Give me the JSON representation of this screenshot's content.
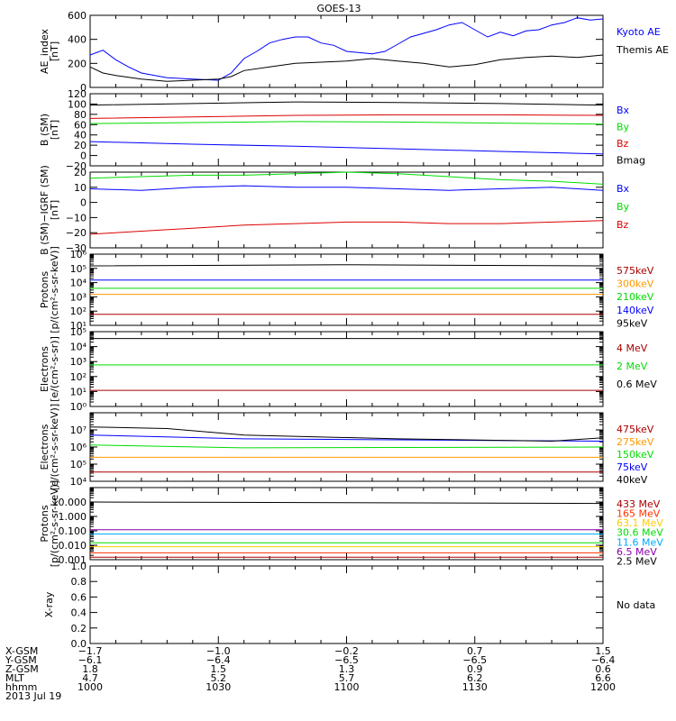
{
  "title": "GOES-13",
  "chart_data": [
    {
      "type": "line",
      "id": "ae",
      "ylabel": [
        "AE_index",
        "[nT]"
      ],
      "ylim": [
        0,
        600
      ],
      "yticks": [
        0,
        200,
        400,
        600
      ],
      "ytick_labels": [
        "0",
        "200",
        "400",
        "600"
      ],
      "series": [
        {
          "name": "Kyoto AE",
          "color": "#0000ff",
          "x": [
            0,
            5,
            10,
            15,
            20,
            30,
            40,
            50,
            55,
            60,
            65,
            70,
            75,
            80,
            85,
            90,
            95,
            100,
            110,
            115,
            120,
            125,
            130,
            135,
            140,
            145,
            150,
            155,
            160,
            165,
            170,
            175,
            180,
            185,
            190,
            195,
            200
          ],
          "y": [
            270,
            310,
            230,
            170,
            120,
            80,
            70,
            60,
            120,
            240,
            300,
            370,
            400,
            420,
            420,
            370,
            350,
            300,
            280,
            300,
            360,
            420,
            450,
            480,
            520,
            540,
            480,
            420,
            460,
            430,
            470,
            480,
            520,
            540,
            580,
            560,
            570
          ]
        },
        {
          "name": "Themis AE",
          "color": "#000000",
          "x": [
            0,
            5,
            10,
            20,
            30,
            40,
            50,
            55,
            60,
            70,
            80,
            90,
            100,
            110,
            120,
            130,
            140,
            150,
            160,
            170,
            180,
            190,
            200
          ],
          "y": [
            170,
            120,
            100,
            70,
            50,
            60,
            70,
            90,
            140,
            170,
            200,
            210,
            220,
            240,
            220,
            200,
            170,
            190,
            230,
            250,
            260,
            250,
            270
          ]
        }
      ]
    },
    {
      "type": "line",
      "id": "bsm",
      "ylabel": [
        "B (SM)",
        "[nT]"
      ],
      "ylim": [
        -20,
        120
      ],
      "yticks": [
        -20,
        0,
        20,
        40,
        60,
        80,
        100,
        120
      ],
      "ytick_labels": [
        "−20",
        "0",
        "20",
        "40",
        "60",
        "80",
        "100",
        "120"
      ],
      "series": [
        {
          "name": "Bx",
          "color": "#0000ff",
          "x": [
            0,
            40,
            80,
            120,
            160,
            200
          ],
          "y": [
            27,
            22,
            18,
            13,
            8,
            3
          ]
        },
        {
          "name": "By",
          "color": "#00dd00",
          "x": [
            0,
            40,
            80,
            120,
            160,
            200
          ],
          "y": [
            62,
            64,
            66,
            65,
            63,
            61
          ]
        },
        {
          "name": "Bz",
          "color": "#dd0000",
          "x": [
            0,
            40,
            80,
            120,
            160,
            200
          ],
          "y": [
            72,
            75,
            78,
            79,
            79,
            78
          ]
        },
        {
          "name": "Bmag",
          "color": "#000000",
          "x": [
            0,
            40,
            80,
            120,
            160,
            200
          ],
          "y": [
            98,
            101,
            104,
            103,
            101,
            98
          ]
        }
      ]
    },
    {
      "type": "line",
      "id": "bigrf",
      "ylabel": [
        "B (SM)−IGRF (SM)",
        "[nT]"
      ],
      "ylim": [
        -30,
        20
      ],
      "yticks": [
        -30,
        -20,
        -10,
        0,
        10,
        20
      ],
      "ytick_labels": [
        "−30",
        "−20",
        "−10",
        "0",
        "10",
        "20"
      ],
      "series": [
        {
          "name": "Bx",
          "color": "#0000ff",
          "x": [
            0,
            20,
            40,
            60,
            80,
            100,
            120,
            140,
            160,
            180,
            200
          ],
          "y": [
            9,
            8,
            10,
            11,
            10,
            10,
            9,
            8,
            9,
            10,
            8
          ]
        },
        {
          "name": "By",
          "color": "#00dd00",
          "x": [
            0,
            20,
            40,
            60,
            80,
            100,
            120,
            140,
            160,
            180,
            200
          ],
          "y": [
            16,
            17,
            18,
            18,
            19,
            20,
            19,
            17,
            15,
            14,
            12
          ]
        },
        {
          "name": "Bz",
          "color": "#dd0000",
          "x": [
            0,
            20,
            40,
            60,
            80,
            100,
            120,
            140,
            160,
            180,
            200
          ],
          "y": [
            -21,
            -19,
            -17,
            -15,
            -14,
            -13,
            -13,
            -14,
            -14,
            -13,
            -12
          ]
        }
      ]
    },
    {
      "type": "line",
      "id": "protons_mag",
      "ylabel": [
        "Protons",
        "[p/(cm²-s-sr-keV)]"
      ],
      "log": true,
      "ylim": [
        10,
        1000000
      ],
      "yticks": [
        10,
        100,
        1000,
        10000,
        100000,
        1000000
      ],
      "ytick_labels": [
        "10¹",
        "10²",
        "10³",
        "10⁴",
        "10⁵",
        "10⁶"
      ],
      "series": [
        {
          "name": "575keV",
          "color": "#aa0000",
          "x": [
            0,
            200
          ],
          "y": [
            60,
            60
          ]
        },
        {
          "name": "300keV",
          "color": "#ff9900",
          "x": [
            0,
            200
          ],
          "y": [
            1500,
            1500
          ]
        },
        {
          "name": "210keV",
          "color": "#00dd00",
          "x": [
            0,
            200
          ],
          "y": [
            4000,
            4000
          ]
        },
        {
          "name": "140keV",
          "color": "#0000ff",
          "x": [
            0,
            200
          ],
          "y": [
            15000,
            15000
          ]
        },
        {
          "name": "95keV",
          "color": "#000000",
          "x": [
            0,
            100,
            200
          ],
          "y": [
            150000,
            180000,
            150000
          ]
        }
      ]
    },
    {
      "type": "line",
      "id": "electrons_mag",
      "ylabel": [
        "Electrons",
        "[e/(cm²-s-sr)]"
      ],
      "log": true,
      "ylim": [
        1,
        100000
      ],
      "yticks": [
        1,
        10,
        100,
        1000,
        10000,
        100000
      ],
      "ytick_labels": [
        "10⁰",
        "10¹",
        "10²",
        "10³",
        "10⁴",
        "10⁵"
      ],
      "series": [
        {
          "name": "4 MeV",
          "color": "#aa0000",
          "x": [
            0,
            200
          ],
          "y": [
            12,
            12
          ]
        },
        {
          "name": "2 MeV",
          "color": "#00dd00",
          "x": [
            0,
            200
          ],
          "y": [
            600,
            600
          ]
        },
        {
          "name": "0.6 MeV",
          "color": "#000000",
          "x": [
            0,
            200
          ],
          "y": [
            35000,
            35000
          ]
        }
      ]
    },
    {
      "type": "line",
      "id": "electrons_mag2",
      "ylabel": [
        "Electrons",
        "[e/(cm²-s-sr-keV)]"
      ],
      "log": true,
      "ylim": [
        10000,
        100000000
      ],
      "yticks": [
        10000,
        100000,
        1000000,
        10000000
      ],
      "ytick_labels": [
        "10⁴",
        "10⁵",
        "10⁶",
        "10⁷"
      ],
      "series": [
        {
          "name": "475keV",
          "color": "#aa0000",
          "x": [
            0,
            200
          ],
          "y": [
            35000,
            35000
          ]
        },
        {
          "name": "275keV",
          "color": "#ff9900",
          "x": [
            0,
            200
          ],
          "y": [
            250000,
            250000
          ]
        },
        {
          "name": "150keV",
          "color": "#00dd00",
          "x": [
            0,
            60,
            200
          ],
          "y": [
            1300000,
            900000,
            1000000
          ]
        },
        {
          "name": "75keV",
          "color": "#0000ff",
          "x": [
            0,
            60,
            140,
            200
          ],
          "y": [
            5000000,
            3000000,
            2500000,
            2200000
          ]
        },
        {
          "name": "40keV",
          "color": "#000000",
          "x": [
            0,
            30,
            60,
            120,
            180,
            200
          ],
          "y": [
            15000000,
            12000000,
            5000000,
            3000000,
            2200000,
            3500000
          ]
        }
      ]
    },
    {
      "type": "line",
      "id": "protons_eps",
      "ylabel": [
        "Protons",
        "[p/(cm²-s-sr-keV)]"
      ],
      "log": true,
      "ylim": [
        0.001,
        100
      ],
      "yticks": [
        0.001,
        0.01,
        0.1,
        1,
        10
      ],
      "ytick_labels": [
        "0.001",
        "0.010",
        "0.100",
        "1.000",
        "10.000"
      ],
      "series": [
        {
          "name": "433 MeV",
          "color": "#aa0000",
          "x": [
            0,
            200
          ],
          "y": [
            0.0015,
            0.0015
          ]
        },
        {
          "name": "165 MeV",
          "color": "#ff3300",
          "x": [
            0,
            200
          ],
          "y": [
            0.003,
            0.003
          ]
        },
        {
          "name": "63.1 MeV",
          "color": "#ffcc00",
          "x": [
            0,
            200
          ],
          "y": [
            0.008,
            0.008
          ]
        },
        {
          "name": "30.6 MeV",
          "color": "#00dd00",
          "x": [
            0,
            200
          ],
          "y": [
            0.015,
            0.015
          ]
        },
        {
          "name": "11.6 MeV",
          "color": "#00aaff",
          "x": [
            0,
            200
          ],
          "y": [
            0.06,
            0.06
          ]
        },
        {
          "name": "6.5 MeV",
          "color": "#8800aa",
          "x": [
            0,
            200
          ],
          "y": [
            0.12,
            0.12
          ]
        },
        {
          "name": "2.5 MeV",
          "color": "#000000",
          "x": [
            0,
            200
          ],
          "y": [
            10,
            8
          ]
        }
      ]
    },
    {
      "type": "line",
      "id": "xray",
      "ylabel": [
        "X-ray"
      ],
      "ylim": [
        0,
        1
      ],
      "yticks": [
        0,
        0.2,
        0.4,
        0.6,
        0.8,
        1.0
      ],
      "ytick_labels": [
        "0.0",
        "0.2",
        "0.4",
        "0.6",
        "0.8",
        "1.0"
      ],
      "legend_text": "No data",
      "series": []
    }
  ],
  "x_axis": {
    "xlim": [
      0,
      200
    ],
    "tick_minutes": [
      0,
      50,
      100,
      150,
      200
    ],
    "rows": [
      {
        "label": "X-GSM",
        "values": [
          "−1.7",
          "−1.0",
          "−0.2",
          "0.7",
          "1.5"
        ]
      },
      {
        "label": "Y-GSM",
        "values": [
          "−6.1",
          "−6.4",
          "−6.5",
          "−6.5",
          "−6.4"
        ]
      },
      {
        "label": "Z-GSM",
        "values": [
          "1.8",
          "1.5",
          "1.3",
          "0.9",
          "0.6"
        ]
      },
      {
        "label": "MLT",
        "values": [
          "4.7",
          "5.2",
          "5.7",
          "6.2",
          "6.6"
        ]
      },
      {
        "label": "hhmm",
        "values": [
          "1000",
          "1030",
          "1100",
          "1130",
          "1200"
        ]
      }
    ],
    "date": "2013 Jul 19"
  }
}
